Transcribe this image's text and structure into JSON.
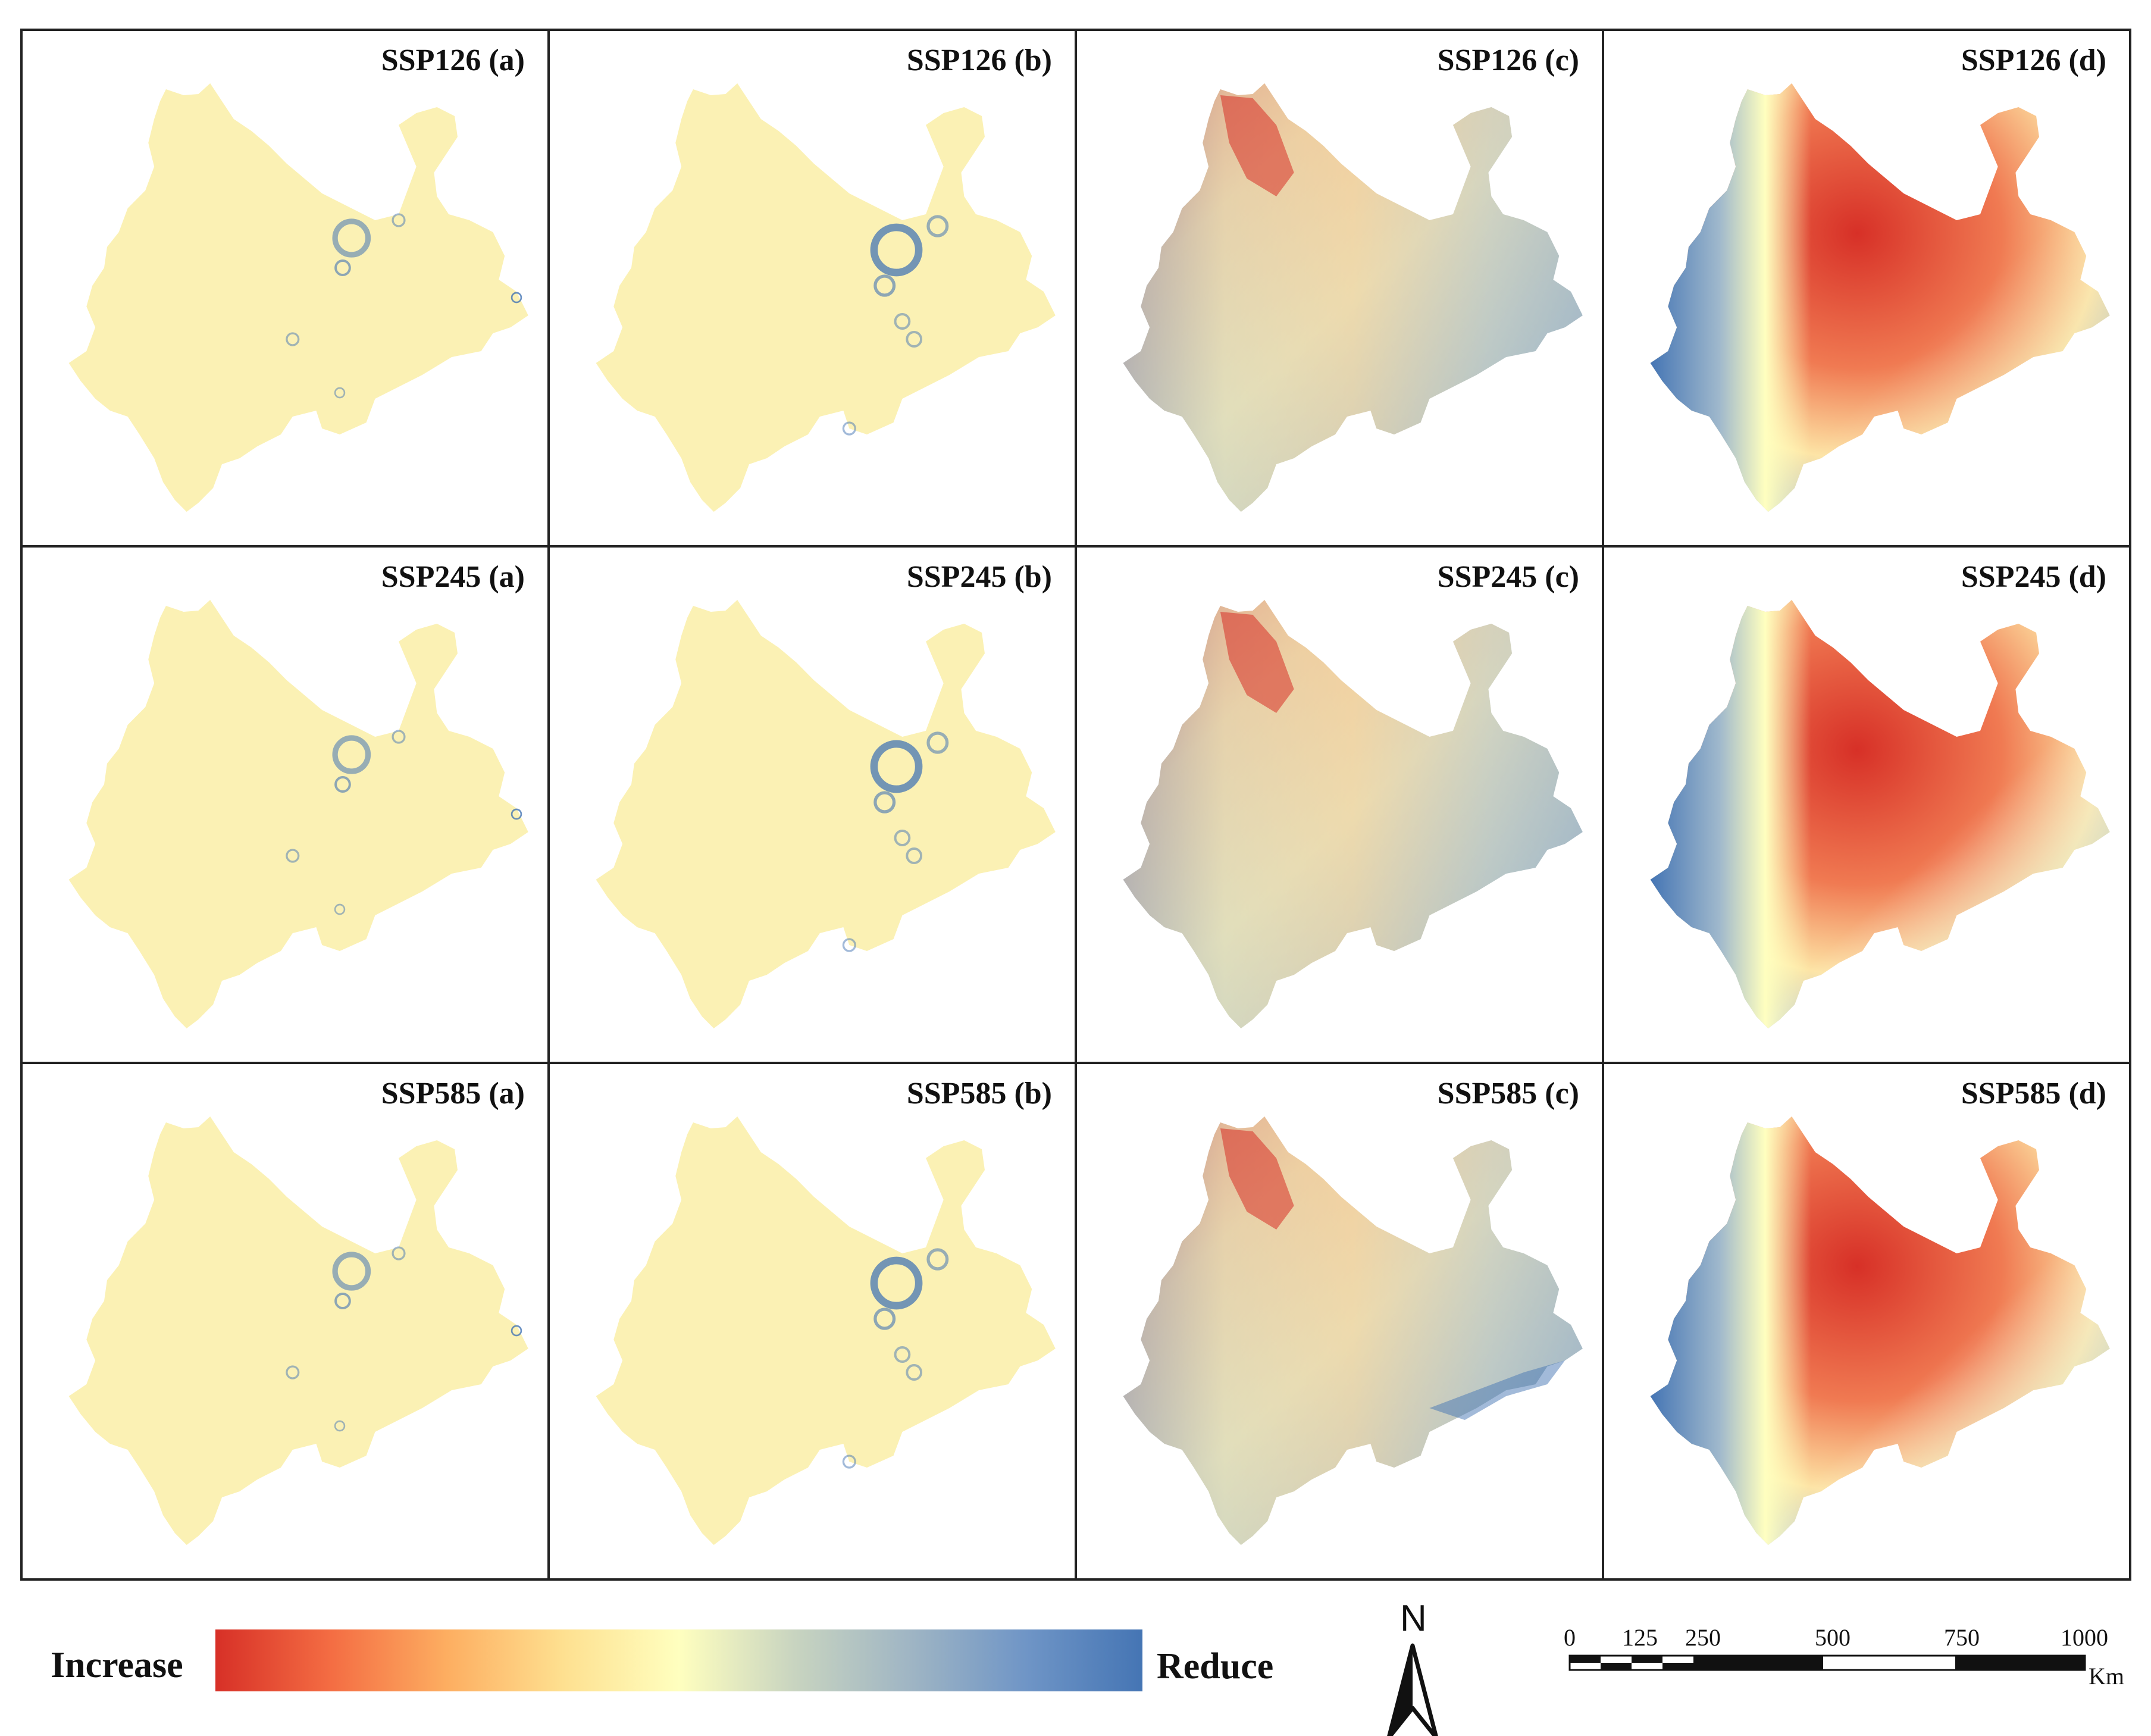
{
  "figure": {
    "rows": [
      {
        "scenario": "SSP126",
        "labels": [
          "SSP126 (a)",
          "SSP126 (b)",
          "SSP126 (c)",
          "SSP126 (d)"
        ]
      },
      {
        "scenario": "SSP245",
        "labels": [
          "SSP245 (a)",
          "SSP245 (b)",
          "SSP245 (c)",
          "SSP245 (d)"
        ]
      },
      {
        "scenario": "SSP585",
        "labels": [
          "SSP585 (a)",
          "SSP585 (b)",
          "SSP585 (c)",
          "SSP585 (d)"
        ]
      }
    ],
    "panel_styles": [
      "a",
      "b",
      "c",
      "d"
    ]
  },
  "legend": {
    "low_label": "Increase",
    "high_label": "Reduce",
    "colors": [
      "#d73027",
      "#f46d43",
      "#fdae61",
      "#fee090",
      "#ffffbf",
      "#c8d4c0",
      "#9fb5c4",
      "#6f95c6",
      "#4575b4"
    ]
  },
  "north_arrow": {
    "label": "N"
  },
  "scale_bar": {
    "ticks": [
      "0",
      "125",
      "250",
      "500",
      "750",
      "1000"
    ],
    "unit": "Km"
  },
  "colors": {
    "pale": "#fbf1b4",
    "red": "#d73027",
    "blue": "#4575b4",
    "grey_blue": "#a9bcc6",
    "panel_border": "#222222"
  }
}
